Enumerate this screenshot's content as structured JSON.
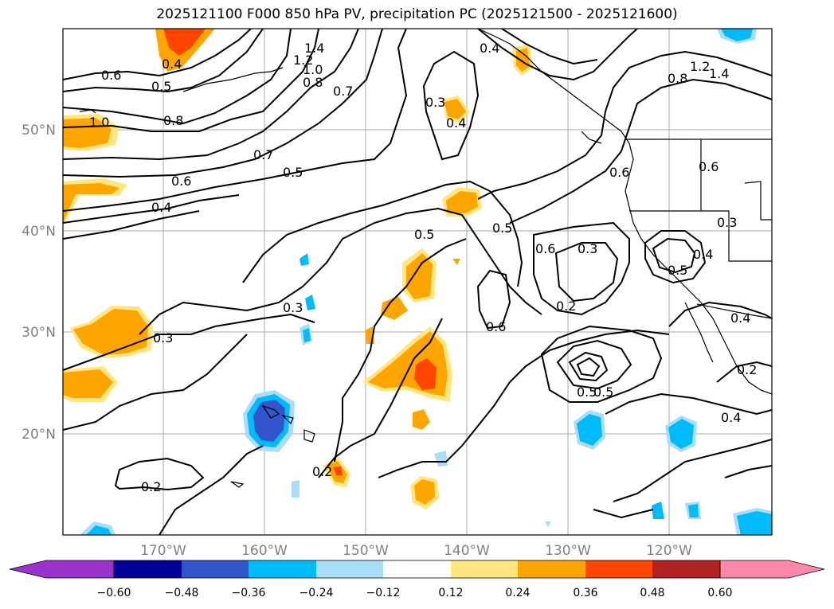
{
  "title": "2025121100 F000 850 hPa PV, precipitation PC (2025121500 - 2025121600)",
  "axes": {
    "lon_ticks": [
      "170°W",
      "160°W",
      "150°W",
      "140°W",
      "130°W",
      "120°W"
    ],
    "lat_ticks": [
      "50°N",
      "40°N",
      "30°N",
      "20°N"
    ]
  },
  "colorbar": {
    "ticks": [
      "−0.60",
      "−0.48",
      "−0.36",
      "−0.24",
      "−0.12",
      "0.12",
      "0.24",
      "0.36",
      "0.48",
      "0.60"
    ],
    "colors": [
      "#9933cc",
      "#000099",
      "#3355cc",
      "#00bbf9",
      "#aaddf7",
      "#ffffff",
      "#ffe680",
      "#ffa500",
      "#ff4500",
      "#b22222",
      "#ff88aa"
    ]
  },
  "contour_labels": [
    "0.4",
    "0.6",
    "0.5",
    "1.0",
    "0.8",
    "0.7",
    "0.5",
    "0.6",
    "0.4",
    "1.2",
    "1.4",
    "1.0",
    "0.8",
    "0.7",
    "0.3",
    "0.4",
    "1.4",
    "1.2",
    "0.8",
    "0.6",
    "0.5",
    "0.3",
    "0.2",
    "0.6",
    "0.5",
    "0.5",
    "0.6",
    "0.3",
    "0.2",
    "0.6",
    "0.4",
    "0.5",
    "0.4",
    "0.4",
    "0.3",
    "0.3",
    "0.2",
    "0.2",
    "0.5",
    "0.4"
  ]
}
